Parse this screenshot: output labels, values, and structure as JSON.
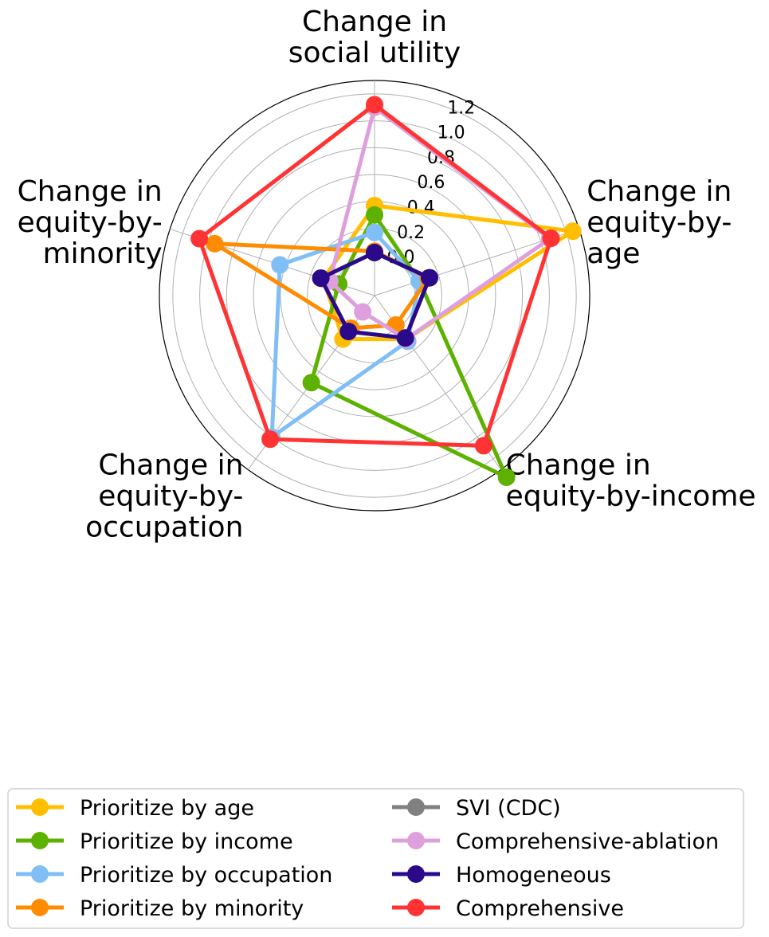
{
  "chart_data": {
    "type": "radar",
    "axes": [
      [
        "Change in",
        "social utility"
      ],
      [
        "Change in",
        "equity-by-",
        "age"
      ],
      [
        "Change in",
        "equity-by-income"
      ],
      [
        "Change in",
        "equity-by-",
        "occupation"
      ],
      [
        "Change in",
        "equity-by-",
        "minority"
      ]
    ],
    "r_range": [
      -0.3,
      1.3
    ],
    "r_ticks": [
      0.0,
      0.2,
      0.4,
      0.6,
      0.8,
      1.0,
      1.2
    ],
    "grid": true,
    "legend_placement": "bottom",
    "series": [
      {
        "name": "Prioritize by age",
        "color": "#FFBF00",
        "values": [
          0.37,
          1.25,
          0.1,
          0.1,
          0.1
        ]
      },
      {
        "name": "Prioritize by income",
        "color": "#5DB100",
        "values": [
          0.3,
          0.05,
          1.37,
          0.5,
          -0.02
        ]
      },
      {
        "name": "Prioritize by occupation",
        "color": "#80BFF5",
        "values": [
          0.17,
          0.05,
          0.12,
          1.0,
          0.44
        ]
      },
      {
        "name": "Prioritize by minority",
        "color": "#FF8C00",
        "values": [
          0.03,
          0.12,
          -0.03,
          0.0,
          0.95
        ]
      },
      {
        "name": "SVI (CDC)",
        "color": "#808080",
        "values": [
          0.02,
          0.13,
          0.09,
          0.03,
          0.12
        ]
      },
      {
        "name": "Comprehensive-ablation",
        "color": "#DDA0DD",
        "values": [
          1.1,
          1.07,
          0.1,
          -0.15,
          0.05
        ]
      },
      {
        "name": "Homogeneous",
        "color": "#2A0A8A",
        "values": [
          0.02,
          0.13,
          0.09,
          0.03,
          0.12
        ]
      },
      {
        "name": "Comprehensive",
        "color": "#FF3333",
        "values": [
          1.12,
          1.08,
          1.08,
          1.02,
          1.07
        ]
      }
    ]
  }
}
